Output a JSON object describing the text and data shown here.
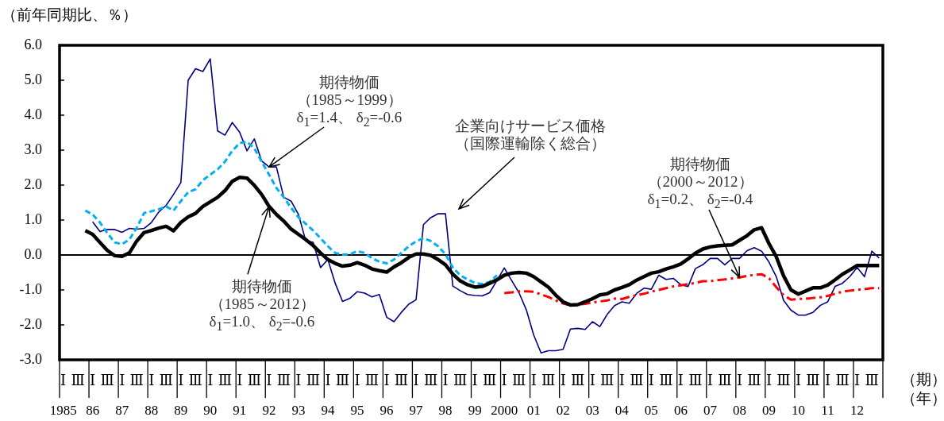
{
  "chart_data": {
    "type": "line",
    "ylabel": "（前年同期比、％）",
    "xlabel": "（期）（年）",
    "categories": [
      "Ⅰ\n1985",
      null,
      "Ⅲ",
      null,
      "Ⅰ\n86",
      null,
      "Ⅲ",
      null,
      "Ⅰ\n87",
      null,
      "Ⅲ",
      null,
      "Ⅰ\n88",
      null,
      "Ⅲ",
      null,
      "Ⅰ\n89",
      null,
      "Ⅲ",
      null,
      "Ⅰ\n90",
      null,
      "Ⅲ",
      null,
      "Ⅰ\n91",
      null,
      "Ⅲ",
      null,
      "Ⅰ\n92",
      null,
      "Ⅲ",
      null,
      "Ⅰ\n93",
      null,
      "Ⅲ",
      null,
      "Ⅰ\n94",
      null,
      "Ⅲ",
      null,
      "Ⅰ\n95",
      null,
      "Ⅲ",
      null,
      "Ⅰ\n96",
      null,
      "Ⅲ",
      null,
      "Ⅰ\n97",
      null,
      "Ⅲ",
      null,
      "Ⅰ\n98",
      null,
      "Ⅲ",
      null,
      "Ⅰ\n99",
      null,
      "Ⅲ",
      null,
      "Ⅰ\n2000",
      null,
      "Ⅲ",
      null,
      "Ⅰ\n01",
      null,
      "Ⅲ",
      null,
      "Ⅰ\n02",
      null,
      "Ⅲ",
      null,
      "Ⅰ\n03",
      null,
      "Ⅲ",
      null,
      "Ⅰ\n04",
      null,
      "Ⅲ",
      null,
      "Ⅰ\n05",
      null,
      "Ⅲ",
      null,
      "Ⅰ\n06",
      null,
      "Ⅲ",
      null,
      "Ⅰ\n07",
      null,
      "Ⅲ",
      null,
      "Ⅰ\n08",
      null,
      "Ⅲ",
      null,
      "Ⅰ\n09",
      null,
      "Ⅲ",
      null,
      "Ⅰ\n10",
      null,
      "Ⅲ",
      null,
      "Ⅰ\n11",
      null,
      "Ⅲ",
      null,
      "Ⅰ\n12",
      null,
      "Ⅲ",
      null
    ],
    "series": [
      {
        "color": "#000080",
        "line_style": "solid",
        "values": [
          null,
          null,
          null,
          null,
          0.95,
          0.67,
          0.73,
          0.73,
          0.65,
          0.76,
          0.74,
          0.76,
          0.93,
          1.23,
          1.42,
          1.73,
          2.07,
          5.0,
          5.33,
          5.25,
          5.61,
          3.55,
          3.43,
          3.79,
          3.51,
          2.98,
          3.32,
          2.69,
          2.52,
          2.52,
          1.65,
          1.54,
          1.16,
          0.4,
          0.36,
          -0.36,
          -0.13,
          -0.81,
          -1.33,
          -1.24,
          -1.05,
          -1.09,
          -1.2,
          -1.13,
          -1.78,
          -1.91,
          -1.64,
          -1.41,
          -1.28,
          0.87,
          1.07,
          1.18,
          1.18,
          -0.89,
          -1.02,
          -1.13,
          -1.16,
          -1.17,
          -1.08,
          -0.73,
          -0.37,
          -0.73,
          -1.08,
          -1.57,
          -2.29,
          -2.8,
          -2.74,
          -2.74,
          -2.7,
          -2.12,
          -2.1,
          -2.13,
          -1.91,
          -2.05,
          -1.7,
          -1.45,
          -1.34,
          -1.38,
          -1.1,
          -0.95,
          -0.98,
          -0.58,
          -0.7,
          -0.67,
          -0.85,
          -0.9,
          -0.39,
          -0.28,
          -0.1,
          -0.1,
          -0.28,
          -0.1,
          -0.1,
          0.12,
          0.21,
          0.11,
          -0.2,
          -0.62,
          -1.3,
          -1.58,
          -1.72,
          -1.72,
          -1.64,
          -1.44,
          -1.34,
          -0.9,
          -0.81,
          -0.62,
          -0.36,
          -0.62,
          0.11,
          -0.09
        ]
      },
      {
        "color": "#000000",
        "line_style": "solid",
        "values": [
          null,
          null,
          null,
          0.7,
          0.59,
          0.36,
          0.13,
          -0.02,
          -0.04,
          0.06,
          0.4,
          0.64,
          0.7,
          0.77,
          0.82,
          0.69,
          0.93,
          1.09,
          1.19,
          1.39,
          1.52,
          1.65,
          1.84,
          2.11,
          2.22,
          2.2,
          1.99,
          1.73,
          1.39,
          1.16,
          0.97,
          0.74,
          0.59,
          0.44,
          0.27,
          0.06,
          -0.13,
          -0.24,
          -0.32,
          -0.29,
          -0.22,
          -0.29,
          -0.4,
          -0.45,
          -0.49,
          -0.34,
          -0.22,
          -0.07,
          0.03,
          0.03,
          -0.01,
          -0.13,
          -0.28,
          -0.55,
          -0.74,
          -0.85,
          -0.92,
          -0.9,
          -0.81,
          -0.71,
          -0.58,
          -0.52,
          -0.5,
          -0.52,
          -0.62,
          -0.77,
          -0.92,
          -1.15,
          -1.34,
          -1.43,
          -1.42,
          -1.34,
          -1.25,
          -1.14,
          -1.11,
          -1.0,
          -0.93,
          -0.85,
          -0.72,
          -0.62,
          -0.52,
          -0.48,
          -0.4,
          -0.34,
          -0.26,
          -0.11,
          0.05,
          0.17,
          0.23,
          0.26,
          0.28,
          0.29,
          0.42,
          0.55,
          0.72,
          0.78,
          0.33,
          -0.05,
          -0.6,
          -1.0,
          -1.12,
          -1.03,
          -0.94,
          -0.94,
          -0.86,
          -0.71,
          -0.55,
          -0.43,
          -0.3,
          -0.3,
          -0.3,
          -0.3
        ]
      },
      {
        "color": "#00b0f0",
        "line_style": "dashed",
        "values": [
          null,
          null,
          null,
          1.27,
          1.16,
          0.93,
          0.63,
          0.36,
          0.31,
          0.44,
          0.78,
          1.2,
          1.25,
          1.31,
          1.39,
          1.27,
          1.54,
          1.8,
          1.88,
          2.14,
          2.3,
          2.45,
          2.67,
          2.98,
          3.2,
          3.24,
          3.05,
          2.67,
          2.3,
          1.92,
          1.65,
          1.35,
          1.08,
          0.89,
          0.7,
          0.48,
          0.25,
          0.06,
          0.01,
          0.02,
          0.11,
          0.06,
          -0.09,
          -0.19,
          -0.24,
          -0.13,
          0.06,
          0.25,
          0.39,
          0.48,
          0.4,
          0.25,
          0.02,
          -0.36,
          -0.58,
          -0.7,
          -0.8,
          -0.83,
          -0.77,
          -0.58,
          null,
          null,
          null,
          null,
          null,
          null,
          null,
          null,
          null,
          null,
          null,
          null,
          null,
          null,
          null,
          null,
          null,
          null,
          null,
          null,
          null,
          null,
          null,
          null,
          null,
          null,
          null,
          null,
          null,
          null,
          null,
          null,
          null,
          null,
          null,
          null,
          null,
          null,
          null,
          null,
          null,
          null,
          null,
          null,
          null,
          null,
          null,
          null,
          null,
          null,
          null,
          null
        ]
      },
      {
        "color": "#ff0000",
        "line_style": "dashdot",
        "values": [
          null,
          null,
          null,
          null,
          null,
          null,
          null,
          null,
          null,
          null,
          null,
          null,
          null,
          null,
          null,
          null,
          null,
          null,
          null,
          null,
          null,
          null,
          null,
          null,
          null,
          null,
          null,
          null,
          null,
          null,
          null,
          null,
          null,
          null,
          null,
          null,
          null,
          null,
          null,
          null,
          null,
          null,
          null,
          null,
          null,
          null,
          null,
          null,
          null,
          null,
          null,
          null,
          null,
          null,
          null,
          null,
          null,
          null,
          null,
          null,
          -1.09,
          -1.07,
          -1.04,
          -1.04,
          -1.05,
          -1.13,
          -1.2,
          -1.3,
          -1.39,
          -1.44,
          -1.42,
          -1.4,
          -1.36,
          -1.33,
          -1.3,
          -1.25,
          -1.26,
          -1.2,
          -1.15,
          -1.11,
          -1.05,
          -1.0,
          -0.95,
          -0.9,
          -0.87,
          -0.83,
          -0.8,
          -0.75,
          -0.75,
          -0.72,
          -0.7,
          -0.67,
          -0.64,
          -0.6,
          -0.57,
          -0.55,
          -0.66,
          -0.92,
          -1.15,
          -1.28,
          -1.26,
          -1.25,
          -1.23,
          -1.21,
          -1.17,
          -1.11,
          -1.05,
          -1.02,
          -1.0,
          -0.98,
          -0.95,
          -0.95
        ]
      }
    ],
    "ylim": [
      -3,
      6
    ],
    "yticks": [
      {
        "value": -3,
        "label": "-3.0"
      },
      {
        "value": -2,
        "label": "-2.0"
      },
      {
        "value": -1,
        "label": "-1.0"
      },
      {
        "value": 0,
        "label": "0.0"
      },
      {
        "value": 1,
        "label": "1.0"
      },
      {
        "value": 2,
        "label": "2.0"
      },
      {
        "value": 3,
        "label": "3.0"
      },
      {
        "value": 4,
        "label": "4.0"
      },
      {
        "value": 5,
        "label": "5.0"
      },
      {
        "value": 6,
        "label": "6.0"
      }
    ],
    "ref_lines": [
      {
        "axis": "y",
        "value": 0,
        "color": "#000000"
      }
    ],
    "annotations": [
      {
        "text": "期待物価（1985～1999）δ$_{1}$=1.4、 δ$_{2}$=-0.6",
        "x": "Ⅰ\n92",
        "y": 2.52
      },
      {
        "text": "期待物価（1985～2012）δ$_{1}$=1.0、 δ$_{2}$=-0.6",
        "x": "Ⅰ\n92",
        "y": 1.39
      },
      "企業向けサービス価格（国際運輸除く総合）",
      {
        "text": "期待物価（2000～2012）δ$_{1}$=0.2、 δ$_{2}$=-0.4",
        "x": "Ⅰ\n08",
        "y": -0.64
      }
    ],
    "grid": false,
    "legend": false,
    "marker": "none"
  }
}
